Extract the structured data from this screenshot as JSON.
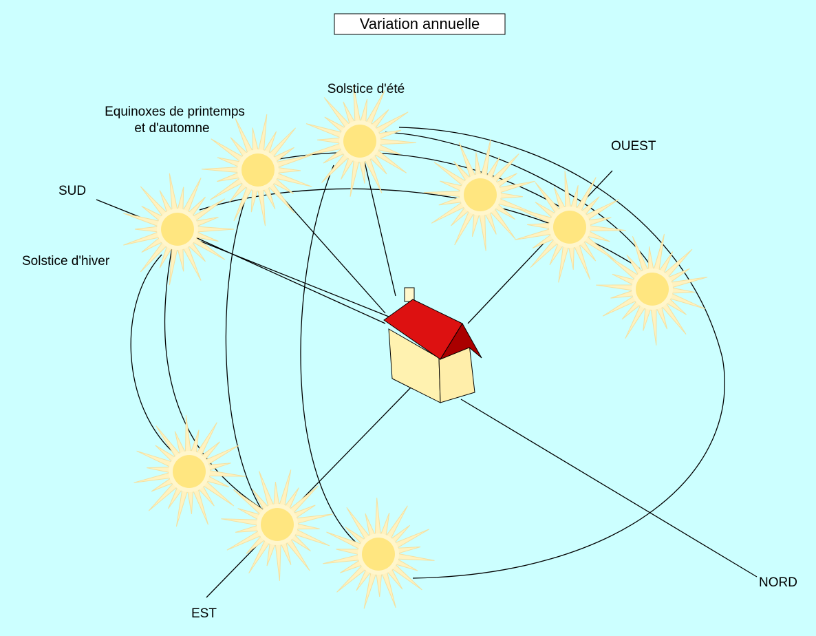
{
  "title": "Variation annuelle",
  "labels": {
    "summer_solstice": "Solstice d'été",
    "equinoxes": [
      "Equinoxes de printemps",
      "et d'automne"
    ],
    "south": "SUD",
    "winter_solstice": "Solstice d'hiver",
    "west": "OUEST",
    "north": "NORD",
    "east": "EST"
  }
}
